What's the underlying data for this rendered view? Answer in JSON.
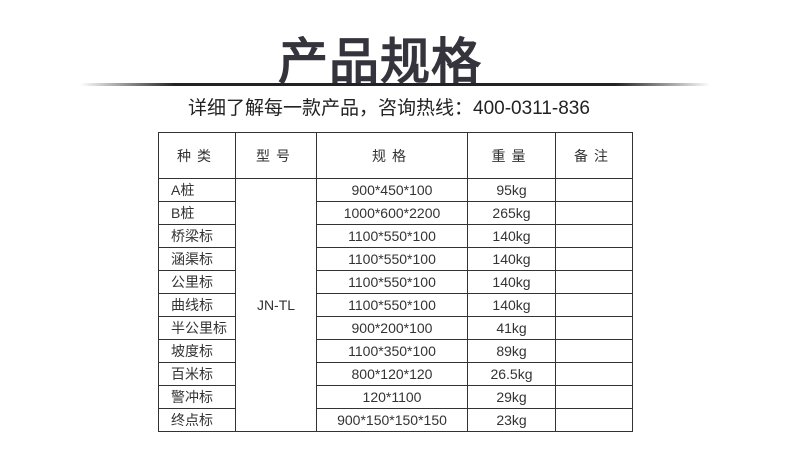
{
  "title": "产品规格",
  "subtitle": "详细了解每一款产品，咨询热线：400-0311-836",
  "table": {
    "headers": [
      "种类",
      "型号",
      "规格",
      "重量",
      "备注"
    ],
    "model": "JN-TL",
    "rows": [
      {
        "type": "A桩",
        "spec": "900*450*100",
        "weight": "95kg",
        "note": ""
      },
      {
        "type": "B桩",
        "spec": "1000*600*2200",
        "weight": "265kg",
        "note": ""
      },
      {
        "type": "桥梁标",
        "spec": "1100*550*100",
        "weight": "140kg",
        "note": ""
      },
      {
        "type": "涵渠标",
        "spec": "1100*550*100",
        "weight": "140kg",
        "note": ""
      },
      {
        "type": "公里标",
        "spec": "1100*550*100",
        "weight": "140kg",
        "note": ""
      },
      {
        "type": "曲线标",
        "spec": "1100*550*100",
        "weight": "140kg",
        "note": ""
      },
      {
        "type": "半公里标",
        "spec": "900*200*100",
        "weight": "41kg",
        "note": ""
      },
      {
        "type": "坡度标",
        "spec": "1100*350*100",
        "weight": "89kg",
        "note": ""
      },
      {
        "type": "百米标",
        "spec": "800*120*120",
        "weight": "26.5kg",
        "note": ""
      },
      {
        "type": "警冲标",
        "spec": "120*1100",
        "weight": "29kg",
        "note": ""
      },
      {
        "type": "终点标",
        "spec": "900*150*150*150",
        "weight": "23kg",
        "note": ""
      }
    ]
  }
}
